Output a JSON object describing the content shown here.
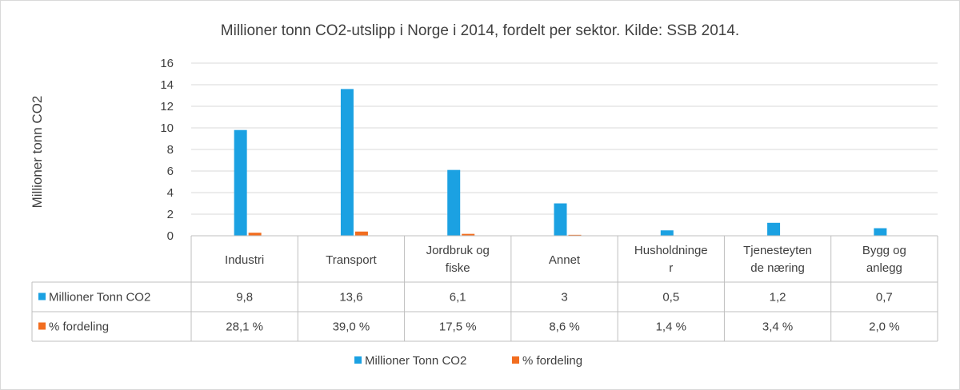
{
  "chart_data": {
    "type": "bar",
    "title": "Millioner tonn CO2-utslipp i Norge i 2014,  fordelt per sektor. Kilde: SSB 2014.",
    "ylabel": "Millioner tonn CO2",
    "xlabel": "",
    "ylim": [
      0,
      16
    ],
    "yticks": [
      "0",
      "2",
      "4",
      "6",
      "8",
      "10",
      "12",
      "14",
      "16"
    ],
    "grid": true,
    "legend_position": "bottom",
    "categories": [
      [
        "Industri"
      ],
      [
        "Transport"
      ],
      [
        "Jordbruk og",
        "fiske"
      ],
      [
        "Annet"
      ],
      [
        "Husholdninge",
        "r"
      ],
      [
        "Tjenesteyten",
        "de næring"
      ],
      [
        "Bygg og",
        "anlegg"
      ]
    ],
    "series": [
      {
        "name": "Millioner Tonn CO2",
        "color": "#1ba1e2",
        "values": [
          9.8,
          13.6,
          6.1,
          3,
          0.5,
          1.2,
          0.7
        ],
        "labels": [
          "9,8",
          "13,6",
          "6,1",
          "3",
          "0,5",
          "1,2",
          "0,7"
        ]
      },
      {
        "name": "% fordeling",
        "color": "#f26d1f",
        "values": [
          0.281,
          0.39,
          0.175,
          0.086,
          0.014,
          0.034,
          0.02
        ],
        "labels": [
          "28,1 %",
          "39,0 %",
          "17,5 %",
          "8,6 %",
          "1,4 %",
          "3,4 %",
          "2,0 %"
        ]
      }
    ]
  }
}
